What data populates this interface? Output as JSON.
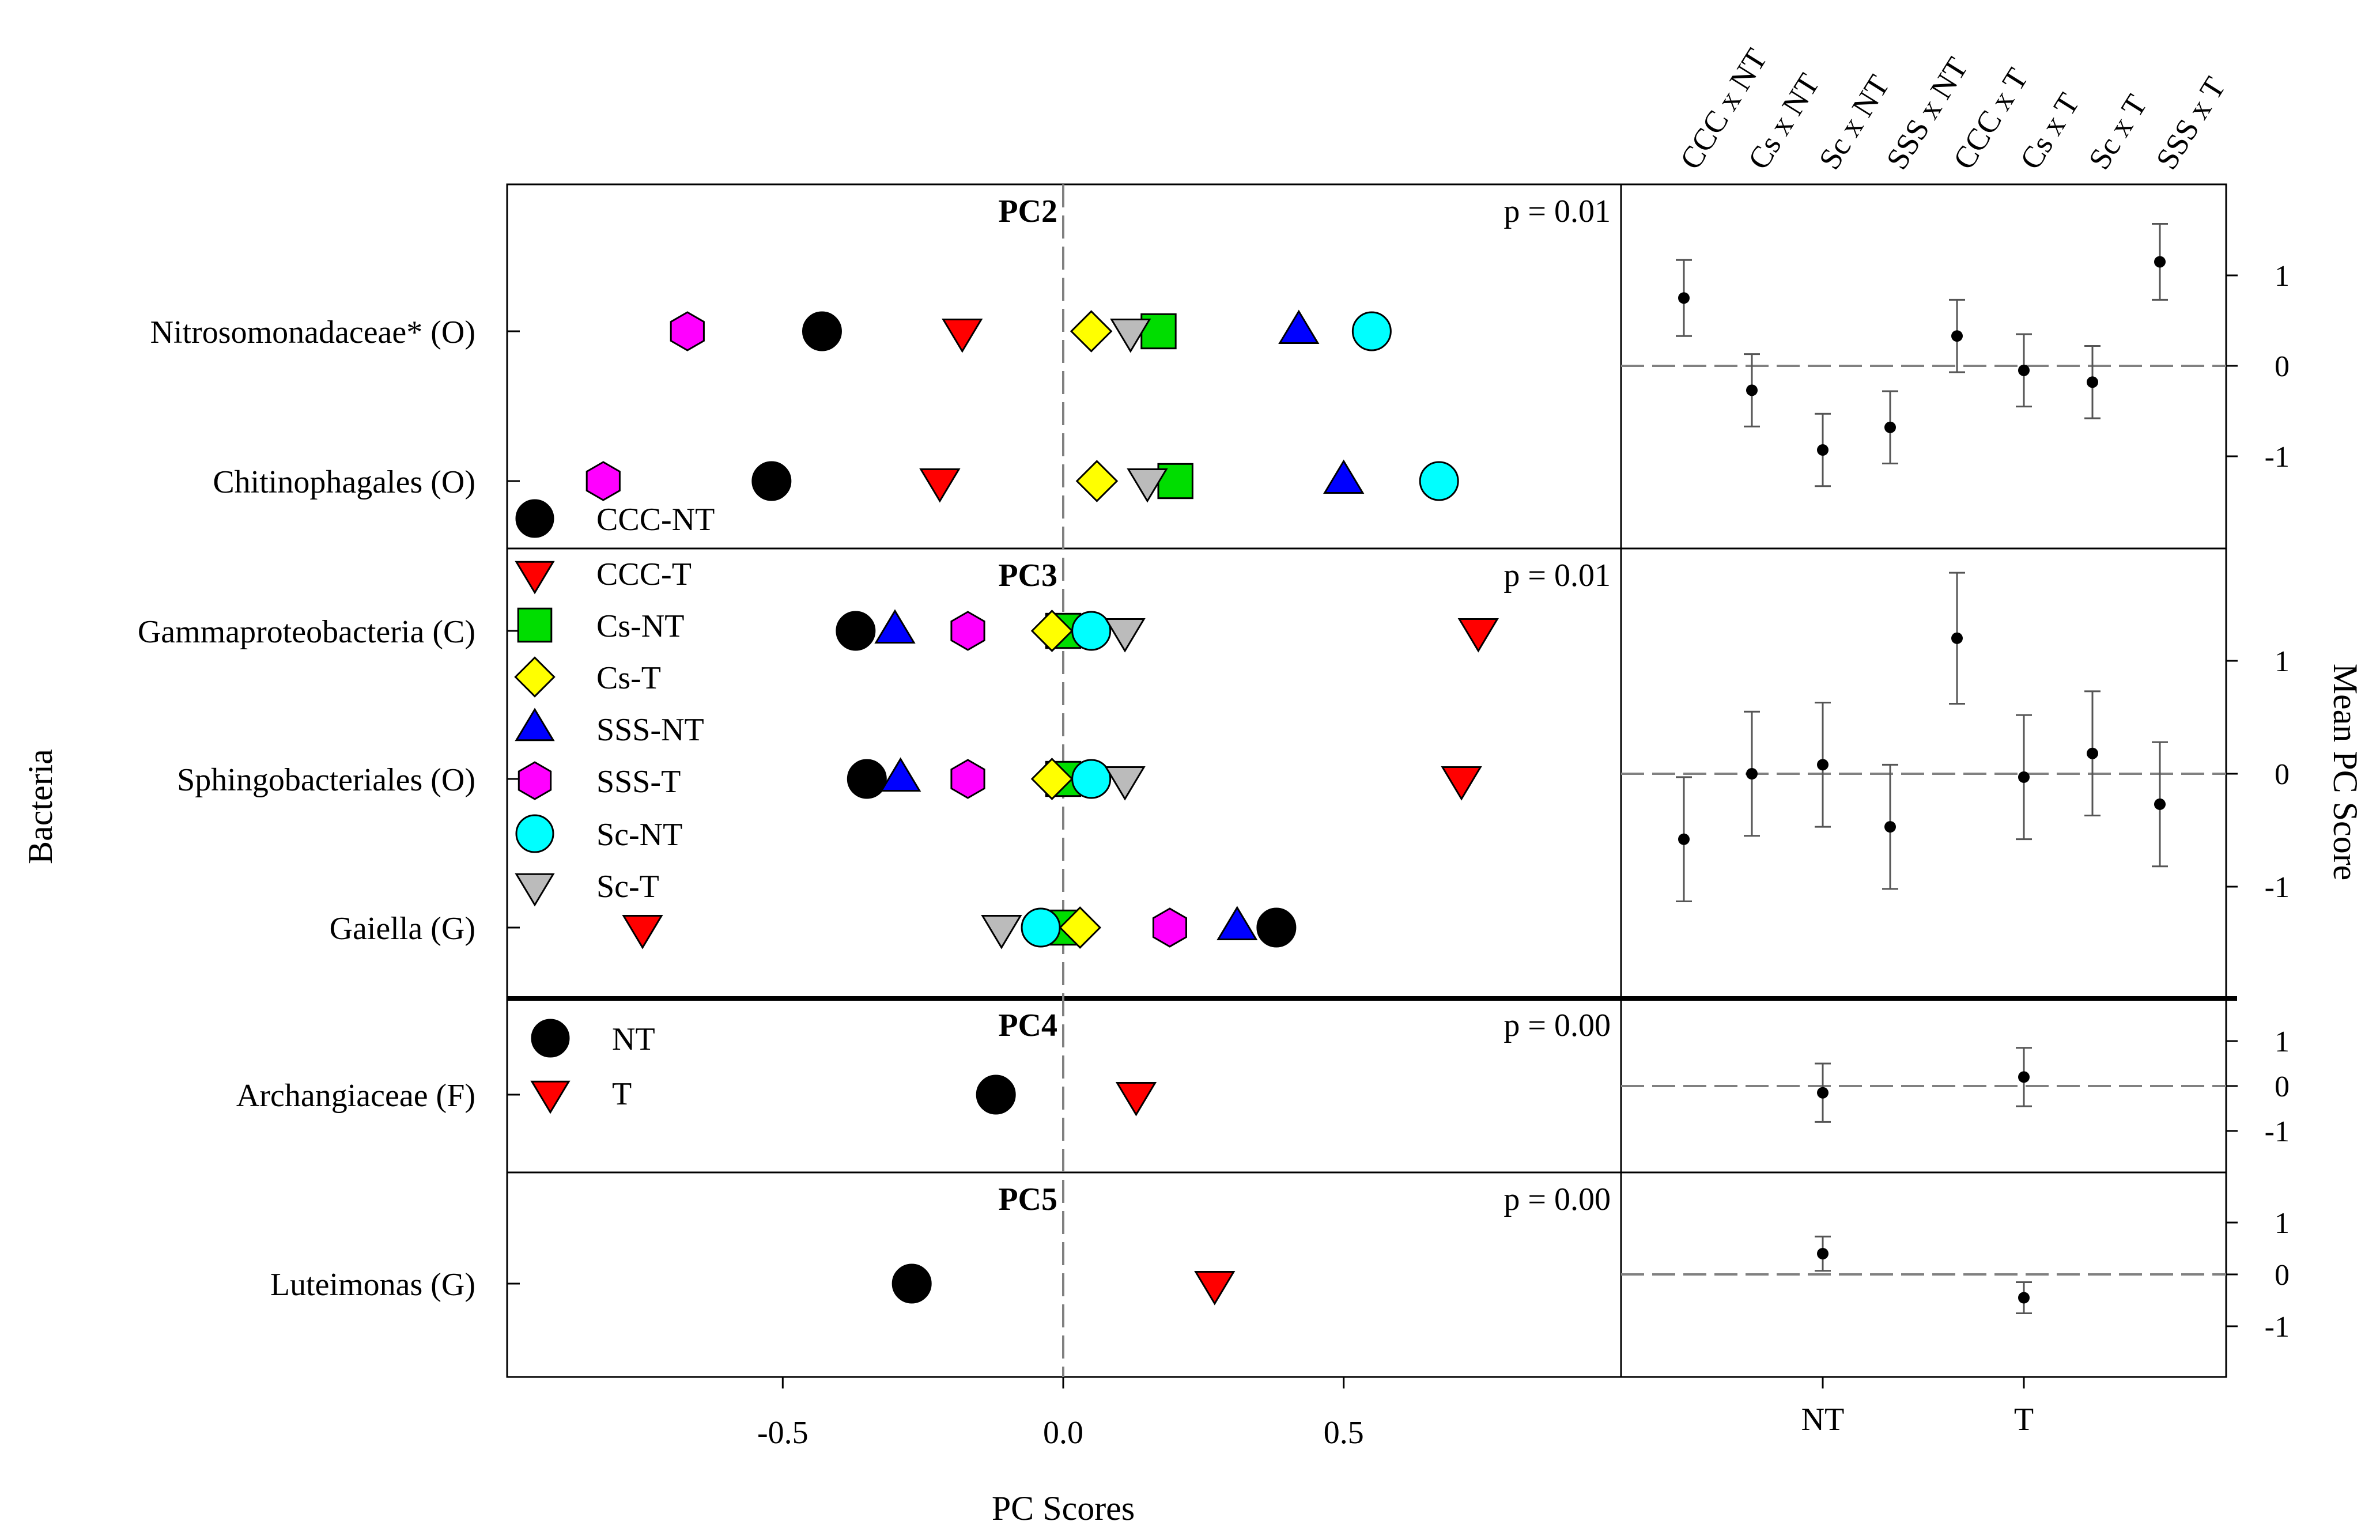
{
  "chart_data": {
    "type": "scatter",
    "xlabel": "PC Scores",
    "ylabel": "Bacteria",
    "right_ylabel": "Mean PC Score",
    "xlim": [
      -1.0,
      1.0
    ],
    "x_ticks": [
      -0.5,
      0.0,
      0.5
    ],
    "x_tick_labels": [
      "-0.5",
      "0.0",
      "0.5"
    ],
    "grid": false,
    "legend_treatments": [
      {
        "label": "CCC-NT",
        "shape": "circle",
        "color": "#000000"
      },
      {
        "label": "CCC-T",
        "shape": "triangle-down",
        "color": "#ff0000"
      },
      {
        "label": "Cs-NT",
        "shape": "square",
        "color": "#00dd00"
      },
      {
        "label": "Cs-T",
        "shape": "diamond",
        "color": "#ffff00"
      },
      {
        "label": "SSS-NT",
        "shape": "triangle-up",
        "color": "#0000ff"
      },
      {
        "label": "SSS-T",
        "shape": "hexagon",
        "color": "#ff00ff"
      },
      {
        "label": "Sc-NT",
        "shape": "circle",
        "color": "#00ffff"
      },
      {
        "label": "Sc-T",
        "shape": "triangle-down",
        "color": "#bbbbbb"
      }
    ],
    "legend_tillage": [
      {
        "label": "NT",
        "shape": "circle",
        "color": "#000000"
      },
      {
        "label": "T",
        "shape": "triangle-down",
        "color": "#ff0000"
      }
    ],
    "panels": [
      {
        "pc": "PC2",
        "p": "p = 0.01",
        "group": "treatment",
        "rows": [
          {
            "taxon": "Nitrosomonadaceae* (O)",
            "values": [
              -0.43,
              -0.18,
              0.17,
              0.05,
              0.42,
              -0.67,
              0.55,
              0.12
            ]
          },
          {
            "taxon": "Chitinophagales (O)",
            "values": [
              -0.52,
              -0.22,
              0.2,
              0.06,
              0.5,
              -0.82,
              0.67,
              0.15
            ]
          }
        ],
        "mean": {
          "categories": [
            "CCC x NT",
            "Cs x NT",
            "Sc x NT",
            "SSS x NT",
            "CCC x T",
            "Cs x T",
            "Sc x T",
            "SSS x T"
          ],
          "ylim": [
            -2.0,
            2.0
          ],
          "yticks": [
            -1,
            0,
            1
          ],
          "means": [
            0.75,
            -0.27,
            -0.93,
            -0.68,
            0.33,
            -0.05,
            -0.18,
            1.15
          ],
          "errors": [
            0.42,
            0.4,
            0.4,
            0.4,
            0.4,
            0.4,
            0.4,
            0.42
          ]
        }
      },
      {
        "pc": "PC3",
        "p": "p = 0.01",
        "group": "treatment",
        "rows": [
          {
            "taxon": "Gammaproteobacteria (C)",
            "values": [
              -0.37,
              0.74,
              0.0,
              -0.02,
              -0.3,
              -0.17,
              0.05,
              0.11
            ]
          },
          {
            "taxon": "Sphingobacteriales (O)",
            "values": [
              -0.35,
              0.71,
              0.0,
              -0.02,
              -0.29,
              -0.17,
              0.05,
              0.11
            ]
          },
          {
            "taxon": "Gaiella (G)",
            "values": [
              0.38,
              -0.75,
              0.0,
              0.03,
              0.31,
              0.19,
              -0.04,
              -0.11
            ]
          }
        ],
        "mean": {
          "categories": [
            "CCC x NT",
            "Cs x NT",
            "Sc x NT",
            "SSS x NT",
            "CCC x T",
            "Cs x T",
            "Sc x T",
            "SSS x T"
          ],
          "ylim": [
            -2.0,
            2.0
          ],
          "yticks": [
            -1,
            0,
            1
          ],
          "means": [
            -0.58,
            0.0,
            0.08,
            -0.47,
            1.2,
            -0.03,
            0.18,
            -0.27
          ],
          "errors": [
            0.55,
            0.55,
            0.55,
            0.55,
            0.58,
            0.55,
            0.55,
            0.55
          ]
        }
      },
      {
        "pc": "PC4",
        "p": "p = 0.00",
        "group": "tillage",
        "rows": [
          {
            "taxon": "Archangiaceae (F)",
            "values": [
              -0.12,
              0.13
            ]
          }
        ],
        "mean": {
          "categories": [
            "NT",
            "T"
          ],
          "ylim": [
            -2.0,
            2.0
          ],
          "yticks": [
            -1,
            0,
            1
          ],
          "means": [
            -0.15,
            0.2
          ],
          "errors": [
            0.65,
            0.65
          ]
        }
      },
      {
        "pc": "PC5",
        "p": "p = 0.00",
        "group": "tillage",
        "rows": [
          {
            "taxon": "Luteimonas (G)",
            "values": [
              -0.27,
              0.27
            ]
          }
        ],
        "mean": {
          "categories": [
            "NT",
            "T"
          ],
          "ylim": [
            -2.0,
            2.0
          ],
          "yticks": [
            -1,
            0,
            1
          ],
          "means": [
            0.4,
            -0.45
          ],
          "errors": [
            0.33,
            0.3
          ]
        }
      }
    ]
  }
}
